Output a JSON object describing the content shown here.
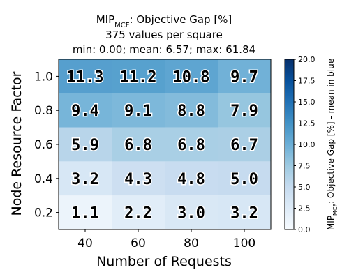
{
  "chart_data": {
    "type": "heatmap",
    "title_main": "MIP",
    "title_sub": "MCF",
    "title_rest": ": Objective Gap [%]",
    "subtitle_line1": "375 values per square",
    "subtitle_line2": "min: 0.00; mean: 6.57; max: 61.84",
    "xlabel": "Number of Requests",
    "ylabel": "Node Resource Factor",
    "x_categories": [
      "40",
      "60",
      "80",
      "100"
    ],
    "y_categories": [
      "0.2",
      "0.4",
      "0.6",
      "0.8",
      "1.0"
    ],
    "values": [
      [
        1.1,
        2.2,
        3.0,
        3.2
      ],
      [
        3.2,
        4.3,
        4.8,
        5.0
      ],
      [
        5.9,
        6.8,
        6.8,
        6.7
      ],
      [
        9.4,
        9.1,
        8.8,
        7.9
      ],
      [
        11.3,
        11.2,
        10.8,
        9.7
      ]
    ],
    "labels": [
      [
        "1.1",
        "2.2",
        "3.0",
        "3.2"
      ],
      [
        "3.2",
        "4.3",
        "4.8",
        "5.0"
      ],
      [
        "5.9",
        "6.8",
        "6.8",
        "6.7"
      ],
      [
        "9.4",
        "9.1",
        "8.8",
        "7.9"
      ],
      [
        "11.3",
        "11.2",
        "10.8",
        "9.7"
      ]
    ],
    "colorbar": {
      "min": 0.0,
      "max": 20.0,
      "ticks": [
        "0.0",
        "2.5",
        "5.0",
        "7.5",
        "10.0",
        "12.5",
        "15.0",
        "17.5",
        "20.0"
      ],
      "label_main": "MIP",
      "label_sub": "MCF",
      "label_rest": ": Objective Gap [%] - mean in blue",
      "colormap": "Blues"
    }
  }
}
